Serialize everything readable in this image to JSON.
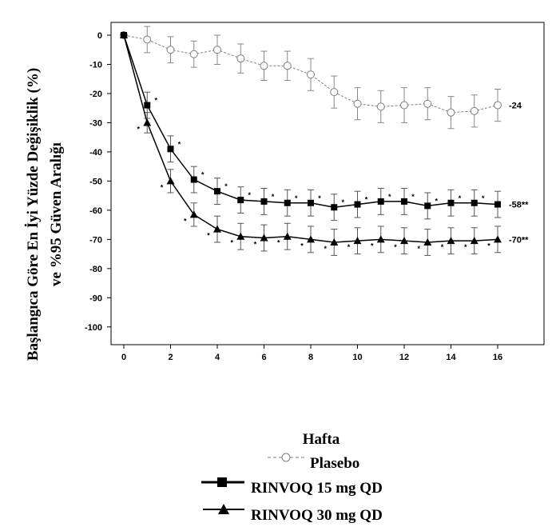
{
  "chart_data": {
    "type": "line",
    "ylabel_lines": [
      "Başlangıca Göre En İyi Yüzde Değişiklik (%)",
      "ve %95 Güven Aralığı"
    ],
    "xlabel": "Hafta",
    "x_ticks": [
      0,
      2,
      4,
      6,
      8,
      10,
      12,
      14,
      16
    ],
    "y_ticks": [
      0,
      -10,
      -20,
      -30,
      -40,
      -50,
      -60,
      -70,
      -80,
      -90,
      -100
    ],
    "xlim": [
      -0.5,
      18
    ],
    "ylim": [
      -106,
      2
    ],
    "grid": false,
    "legend_position": "bottom-center",
    "x": [
      0,
      1,
      2,
      3,
      4,
      5,
      6,
      7,
      8,
      9,
      10,
      11,
      12,
      13,
      14,
      15,
      16
    ],
    "series": [
      {
        "name": "Plasebo",
        "marker": "open-circle",
        "line_style": "dashed",
        "color": "#7f7f7f",
        "values": [
          0,
          -1.5,
          -5,
          -6.5,
          -5,
          -8,
          -10.5,
          -10.5,
          -13.5,
          -19.5,
          -23.5,
          -24.5,
          -24,
          -23.5,
          -26.5,
          -26,
          -24
        ],
        "err": [
          0,
          4.5,
          4.5,
          4.5,
          5,
          5,
          5,
          5,
          5.5,
          5.5,
          5.5,
          5.5,
          6,
          5.5,
          5.5,
          5.5,
          5.5
        ],
        "end_label": "-24",
        "stars": []
      },
      {
        "name": "RINVOQ 15 mg QD",
        "marker": "filled-square",
        "line_style": "solid",
        "color": "#000000",
        "values": [
          0,
          -24,
          -39,
          -49.5,
          -53.5,
          -56.5,
          -57,
          -57.5,
          -57.5,
          -59,
          -58,
          -57,
          -57,
          -58.5,
          -57.5,
          -57.5,
          -58
        ],
        "err": [
          0,
          4.5,
          4.5,
          4.5,
          4.5,
          4.5,
          4.5,
          4.5,
          4.5,
          4.5,
          4.5,
          4.5,
          4.5,
          4.5,
          4.5,
          4.5,
          4.5
        ],
        "end_label": "-58**",
        "stars": [
          1,
          2,
          3,
          4,
          5,
          6,
          7,
          8,
          9,
          10,
          11,
          12,
          13,
          14,
          15
        ]
      },
      {
        "name": "RINVOQ 30 mg QD",
        "marker": "filled-triangle",
        "line_style": "solid",
        "color": "#000000",
        "values": [
          0,
          -30,
          -50,
          -61.5,
          -66.5,
          -69,
          -69.5,
          -69,
          -70,
          -71,
          -70.5,
          -70,
          -70.5,
          -71,
          -70.5,
          -70.5,
          -70
        ],
        "err": [
          0,
          3.5,
          4,
          4,
          4.5,
          4.5,
          4.5,
          4.5,
          4.5,
          4.5,
          4.5,
          4.5,
          4.5,
          4.5,
          4.5,
          4.5,
          4.5
        ],
        "end_label": "-70**",
        "stars": [
          1,
          2,
          3,
          4,
          5,
          6,
          7,
          8,
          9,
          10,
          11,
          12,
          13,
          14,
          15,
          16
        ]
      }
    ],
    "star_text": "*"
  },
  "legend": {
    "items": [
      {
        "label": "Plasebo",
        "marker": "open-circle"
      },
      {
        "label": "RINVOQ 15 mg QD",
        "marker": "filled-square"
      },
      {
        "label": "RINVOQ 30 mg QD",
        "marker": "filled-triangle"
      }
    ]
  }
}
